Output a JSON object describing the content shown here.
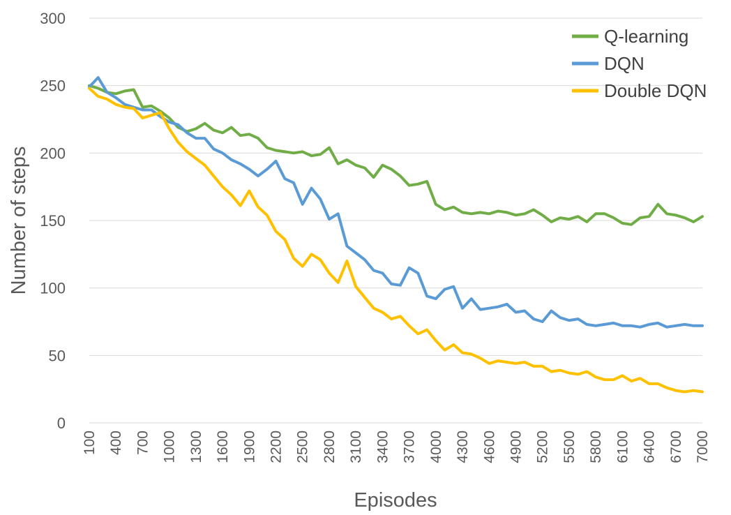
{
  "chart_data": {
    "type": "line",
    "xlabel": "Episodes",
    "ylabel": "Number of steps",
    "ylim": [
      0,
      300
    ],
    "yticks": [
      0,
      50,
      100,
      150,
      200,
      250,
      300
    ],
    "grid": true,
    "legend_position": "top-right",
    "x": [
      100,
      200,
      300,
      400,
      500,
      600,
      700,
      800,
      900,
      1000,
      1100,
      1200,
      1300,
      1400,
      1500,
      1600,
      1700,
      1800,
      1900,
      2000,
      2100,
      2200,
      2300,
      2400,
      2500,
      2600,
      2700,
      2800,
      2900,
      3000,
      3100,
      3200,
      3300,
      3400,
      3500,
      3600,
      3700,
      3800,
      3900,
      4000,
      4100,
      4200,
      4300,
      4400,
      4500,
      4600,
      4700,
      4800,
      4900,
      5000,
      5100,
      5200,
      5300,
      5400,
      5500,
      5600,
      5700,
      5800,
      5900,
      6000,
      6100,
      6200,
      6300,
      6400,
      6500,
      6600,
      6700,
      6800,
      6900,
      7000
    ],
    "x_tick_labels": [
      "100",
      "400",
      "700",
      "1000",
      "1300",
      "1600",
      "1900",
      "2200",
      "2500",
      "2800",
      "3100",
      "3400",
      "3700",
      "4000",
      "4300",
      "4600",
      "4900",
      "5200",
      "5500",
      "5800",
      "6100",
      "6400",
      "6700",
      "7000"
    ],
    "series": [
      {
        "name": "Q-learning",
        "color": "#70AD47",
        "values": [
          250,
          248,
          245,
          244,
          246,
          247,
          234,
          235,
          231,
          226,
          219,
          216,
          218,
          222,
          217,
          215,
          219,
          213,
          214,
          211,
          204,
          202,
          201,
          200,
          201,
          198,
          199,
          204,
          192,
          195,
          191,
          189,
          182,
          191,
          188,
          183,
          176,
          177,
          179,
          162,
          158,
          160,
          156,
          155,
          156,
          155,
          157,
          156,
          154,
          155,
          158,
          154,
          149,
          152,
          151,
          153,
          149,
          155,
          155,
          152,
          148,
          147,
          152,
          153,
          162,
          155,
          154,
          152,
          149,
          153
        ]
      },
      {
        "name": "DQN",
        "color": "#5B9BD5",
        "values": [
          249,
          256,
          245,
          241,
          236,
          234,
          232,
          232,
          227,
          223,
          221,
          215,
          211,
          211,
          203,
          200,
          195,
          192,
          188,
          183,
          188,
          194,
          181,
          178,
          162,
          174,
          166,
          151,
          155,
          131,
          126,
          121,
          113,
          111,
          103,
          102,
          115,
          111,
          94,
          92,
          99,
          101,
          85,
          92,
          84,
          85,
          86,
          88,
          82,
          83,
          77,
          75,
          83,
          78,
          76,
          77,
          73,
          72,
          73,
          74,
          72,
          72,
          71,
          73,
          74,
          71,
          72,
          73,
          72,
          72
        ]
      },
      {
        "name": "Double DQN",
        "color": "#FFC000",
        "values": [
          248,
          242,
          240,
          236,
          234,
          233,
          226,
          228,
          230,
          218,
          208,
          201,
          196,
          191,
          183,
          175,
          169,
          161,
          172,
          160,
          154,
          142,
          136,
          122,
          116,
          125,
          121,
          111,
          104,
          120,
          101,
          93,
          85,
          82,
          77,
          79,
          72,
          66,
          69,
          61,
          54,
          58,
          52,
          51,
          48,
          44,
          46,
          45,
          44,
          45,
          42,
          42,
          38,
          39,
          37,
          36,
          38,
          34,
          32,
          32,
          35,
          31,
          33,
          29,
          29,
          26,
          24,
          23,
          24,
          23
        ]
      }
    ]
  }
}
